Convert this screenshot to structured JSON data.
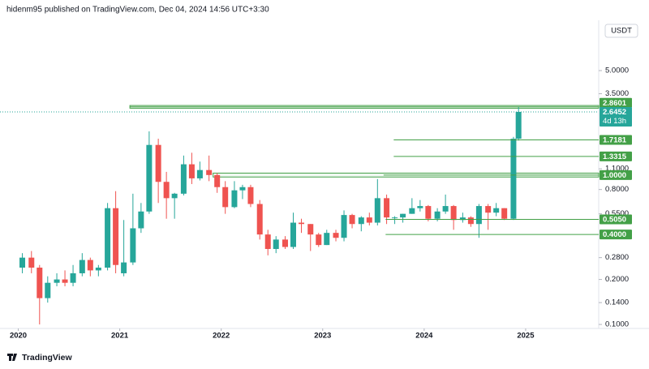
{
  "header": "hidenm95 published on TradingView.com, Dec 04, 2024 14:56 UTC+3:30",
  "footer": "TradingView",
  "chart_data": {
    "type": "candlestick",
    "currency": "USDT",
    "log_scale": true,
    "grid": false,
    "up_color": "#26a69a",
    "down_color": "#ef5350",
    "x": [
      2020.04,
      2020.13,
      2020.21,
      2020.29,
      2020.38,
      2020.46,
      2020.54,
      2020.63,
      2020.71,
      2020.79,
      2020.88,
      2020.96,
      2021.04,
      2021.13,
      2021.21,
      2021.29,
      2021.38,
      2021.46,
      2021.54,
      2021.63,
      2021.71,
      2021.79,
      2021.88,
      2021.96,
      2022.04,
      2022.13,
      2022.21,
      2022.29,
      2022.38,
      2022.46,
      2022.54,
      2022.63,
      2022.71,
      2022.79,
      2022.88,
      2022.96,
      2023.04,
      2023.13,
      2023.21,
      2023.29,
      2023.38,
      2023.46,
      2023.54,
      2023.63,
      2023.71,
      2023.79,
      2023.88,
      2023.96,
      2024.04,
      2024.13,
      2024.21,
      2024.29,
      2024.38,
      2024.46,
      2024.54,
      2024.63,
      2024.71,
      2024.79,
      2024.88,
      2024.93
    ],
    "open": [
      0.24,
      0.28,
      0.24,
      0.15,
      0.19,
      0.2,
      0.19,
      0.22,
      0.27,
      0.23,
      0.24,
      0.6,
      0.22,
      0.26,
      0.44,
      0.57,
      1.59,
      0.9,
      0.7,
      0.75,
      1.18,
      0.95,
      1.08,
      1.0,
      0.83,
      0.61,
      0.79,
      0.83,
      0.64,
      0.4,
      0.32,
      0.37,
      0.33,
      0.48,
      0.47,
      0.4,
      0.34,
      0.41,
      0.38,
      0.54,
      0.47,
      0.52,
      0.48,
      0.7,
      0.52,
      0.52,
      0.55,
      0.6,
      0.62,
      0.51,
      0.57,
      0.62,
      0.5,
      0.52,
      0.47,
      0.62,
      0.56,
      0.6,
      0.51,
      1.75
    ],
    "high": [
      0.3,
      0.31,
      0.25,
      0.21,
      0.22,
      0.23,
      0.25,
      0.3,
      0.28,
      0.25,
      0.65,
      0.78,
      0.5,
      0.75,
      0.65,
      1.96,
      1.75,
      1.05,
      0.76,
      1.35,
      1.41,
      1.23,
      1.35,
      1.03,
      0.91,
      0.91,
      0.86,
      0.86,
      0.68,
      0.43,
      0.39,
      0.39,
      0.56,
      0.51,
      0.47,
      0.41,
      0.43,
      0.43,
      0.58,
      0.55,
      0.53,
      0.56,
      0.94,
      0.74,
      0.53,
      0.55,
      0.7,
      0.68,
      0.63,
      0.6,
      0.74,
      0.63,
      0.56,
      0.53,
      0.64,
      0.64,
      0.65,
      0.6,
      1.8,
      2.86
    ],
    "low": [
      0.22,
      0.22,
      0.1,
      0.14,
      0.18,
      0.18,
      0.18,
      0.21,
      0.21,
      0.21,
      0.23,
      0.22,
      0.21,
      0.25,
      0.41,
      0.55,
      0.65,
      0.51,
      0.51,
      0.73,
      0.87,
      0.92,
      0.91,
      0.76,
      0.55,
      0.6,
      0.69,
      0.61,
      0.37,
      0.29,
      0.3,
      0.32,
      0.32,
      0.41,
      0.31,
      0.33,
      0.34,
      0.36,
      0.36,
      0.44,
      0.42,
      0.46,
      0.46,
      0.47,
      0.47,
      0.48,
      0.55,
      0.57,
      0.49,
      0.49,
      0.55,
      0.43,
      0.48,
      0.45,
      0.38,
      0.43,
      0.53,
      0.5,
      0.5,
      1.7
    ],
    "close": [
      0.28,
      0.24,
      0.15,
      0.19,
      0.2,
      0.19,
      0.22,
      0.27,
      0.23,
      0.24,
      0.6,
      0.25,
      0.26,
      0.44,
      0.57,
      1.59,
      0.9,
      0.7,
      0.75,
      1.18,
      0.95,
      1.08,
      1.0,
      0.83,
      0.61,
      0.79,
      0.83,
      0.64,
      0.4,
      0.32,
      0.37,
      0.33,
      0.48,
      0.47,
      0.4,
      0.34,
      0.41,
      0.38,
      0.54,
      0.47,
      0.52,
      0.48,
      0.7,
      0.52,
      0.52,
      0.55,
      0.6,
      0.62,
      0.51,
      0.57,
      0.62,
      0.5,
      0.52,
      0.47,
      0.62,
      0.56,
      0.6,
      0.51,
      1.75,
      2.6452
    ],
    "xlim": [
      2019.82,
      2025.72
    ],
    "xticks": [
      2020,
      2021,
      2022,
      2023,
      2024,
      2025
    ],
    "ylim": [
      0.094,
      10.2
    ],
    "yticks": [
      {
        "value": 5,
        "label": "5.0000"
      },
      {
        "value": 3.5,
        "label": "3.5000"
      },
      {
        "value": 1.1,
        "label": "1.1000"
      },
      {
        "value": 0.8,
        "label": "0.8000"
      },
      {
        "value": 0.55,
        "label": "0.5500"
      },
      {
        "value": 0.28,
        "label": "0.2800"
      },
      {
        "value": 0.2,
        "label": "0.2000"
      },
      {
        "value": 0.14,
        "label": "0.1400"
      },
      {
        "value": 0.1,
        "label": "0.1000"
      }
    ],
    "zones": [
      {
        "low": 2.8,
        "high": 2.92,
        "start": 2021.1
      },
      {
        "low": 0.97,
        "high": 1.03,
        "start": 2021.92
      }
    ],
    "levels": [
      {
        "value": 2.8601,
        "label": "2.8601",
        "start": 2021.1
      },
      {
        "value": 1.7181,
        "label": "1.7181",
        "start": 2023.7
      },
      {
        "value": 1.3315,
        "label": "1.3315",
        "start": 2023.7
      },
      {
        "value": 1.0,
        "label": "1.0000",
        "start": 2023.6
      },
      {
        "value": 0.505,
        "label": "0.5050",
        "start": 2023.62
      },
      {
        "value": 0.4,
        "label": "0.4000",
        "start": 2023.62
      }
    ],
    "level_color": "#43a047",
    "current_price": {
      "value": 2.6452,
      "label": "2.6452",
      "countdown": "4d 13h",
      "color": "#26a69a"
    }
  }
}
